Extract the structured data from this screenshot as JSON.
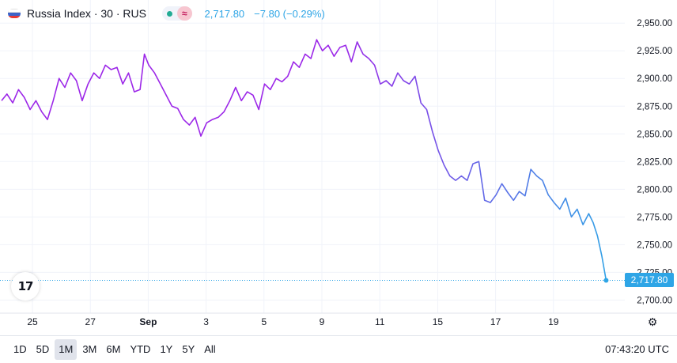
{
  "header": {
    "title": "Russia Index · 30 · RUS",
    "price": "2,717.80",
    "change": "−7.80 (−0.29%)",
    "wave_icon": "≈"
  },
  "colors": {
    "line_start": "#9c27e8",
    "line_end": "#2ea5e6",
    "accent": "#2ea5e6",
    "market_dot": "#22ab94"
  },
  "logo": {
    "text": "17"
  },
  "last_price_label": "2,717.80",
  "footer": {
    "ranges": [
      {
        "label": "1D"
      },
      {
        "label": "5D"
      },
      {
        "label": "1M",
        "active": true
      },
      {
        "label": "3M"
      },
      {
        "label": "6M"
      },
      {
        "label": "YTD"
      },
      {
        "label": "1Y"
      },
      {
        "label": "5Y"
      },
      {
        "label": "All"
      }
    ],
    "clock": "07:43:20 UTC"
  },
  "chart_data": {
    "type": "line",
    "x_ticks": [
      {
        "label": "25",
        "t": 1
      },
      {
        "label": "27",
        "t": 3
      },
      {
        "label": "Sep",
        "t": 5,
        "bold": true
      },
      {
        "label": "3",
        "t": 7
      },
      {
        "label": "5",
        "t": 9
      },
      {
        "label": "9",
        "t": 11
      },
      {
        "label": "11",
        "t": 13
      },
      {
        "label": "15",
        "t": 15
      },
      {
        "label": "17",
        "t": 17
      },
      {
        "label": "19",
        "t": 19
      }
    ],
    "y_ticks": [
      2700,
      2725,
      2750,
      2775,
      2800,
      2825,
      2850,
      2875,
      2900,
      2925,
      2950
    ],
    "y_tick_labels": [
      "2,700.00",
      "2,725.00",
      "2,750.00",
      "2,775.00",
      "2,800.00",
      "2,825.00",
      "2,850.00",
      "2,875.00",
      "2,900.00",
      "2,925.00",
      "2,950.00"
    ],
    "xlim": [
      0.1,
      21.0
    ],
    "ylim": [
      2696,
      2958
    ],
    "grid": true,
    "last_value": 2717.8,
    "series": [
      {
        "points": [
          [
            0.1,
            2880
          ],
          [
            0.3,
            2886
          ],
          [
            0.5,
            2878
          ],
          [
            0.7,
            2890
          ],
          [
            0.9,
            2883
          ],
          [
            1.1,
            2872
          ],
          [
            1.3,
            2880
          ],
          [
            1.5,
            2870
          ],
          [
            1.7,
            2863
          ],
          [
            1.9,
            2880
          ],
          [
            2.1,
            2900
          ],
          [
            2.3,
            2892
          ],
          [
            2.5,
            2905
          ],
          [
            2.7,
            2898
          ],
          [
            2.9,
            2880
          ],
          [
            3.1,
            2895
          ],
          [
            3.3,
            2905
          ],
          [
            3.5,
            2900
          ],
          [
            3.7,
            2912
          ],
          [
            3.9,
            2908
          ],
          [
            4.1,
            2910
          ],
          [
            4.3,
            2895
          ],
          [
            4.5,
            2905
          ],
          [
            4.7,
            2888
          ],
          [
            4.9,
            2890
          ],
          [
            5.05,
            2922
          ],
          [
            5.2,
            2912
          ],
          [
            5.4,
            2905
          ],
          [
            5.6,
            2895
          ],
          [
            5.8,
            2885
          ],
          [
            6.0,
            2875
          ],
          [
            6.2,
            2873
          ],
          [
            6.4,
            2863
          ],
          [
            6.6,
            2858
          ],
          [
            6.8,
            2865
          ],
          [
            7.0,
            2848
          ],
          [
            7.2,
            2860
          ],
          [
            7.4,
            2863
          ],
          [
            7.6,
            2865
          ],
          [
            7.8,
            2870
          ],
          [
            8.0,
            2880
          ],
          [
            8.2,
            2892
          ],
          [
            8.4,
            2880
          ],
          [
            8.6,
            2888
          ],
          [
            8.8,
            2885
          ],
          [
            9.0,
            2872
          ],
          [
            9.2,
            2895
          ],
          [
            9.4,
            2890
          ],
          [
            9.6,
            2900
          ],
          [
            9.8,
            2897
          ],
          [
            10.0,
            2902
          ],
          [
            10.2,
            2915
          ],
          [
            10.4,
            2910
          ],
          [
            10.6,
            2922
          ],
          [
            10.8,
            2918
          ],
          [
            11.0,
            2935
          ],
          [
            11.2,
            2925
          ],
          [
            11.4,
            2930
          ],
          [
            11.6,
            2920
          ],
          [
            11.8,
            2928
          ],
          [
            12.0,
            2930
          ],
          [
            12.2,
            2915
          ],
          [
            12.4,
            2933
          ],
          [
            12.6,
            2922
          ],
          [
            12.8,
            2918
          ],
          [
            13.0,
            2912
          ],
          [
            13.2,
            2895
          ],
          [
            13.4,
            2898
          ],
          [
            13.6,
            2893
          ],
          [
            13.8,
            2905
          ],
          [
            14.0,
            2898
          ],
          [
            14.2,
            2895
          ],
          [
            14.4,
            2902
          ],
          [
            14.6,
            2878
          ],
          [
            14.8,
            2872
          ],
          [
            15.0,
            2852
          ],
          [
            15.2,
            2835
          ],
          [
            15.4,
            2822
          ],
          [
            15.6,
            2812
          ],
          [
            15.8,
            2808
          ],
          [
            16.0,
            2812
          ],
          [
            16.2,
            2808
          ],
          [
            16.4,
            2823
          ],
          [
            16.6,
            2825
          ],
          [
            16.8,
            2790
          ],
          [
            17.0,
            2788
          ],
          [
            17.2,
            2795
          ],
          [
            17.4,
            2805
          ],
          [
            17.6,
            2797
          ],
          [
            17.8,
            2790
          ],
          [
            18.0,
            2798
          ],
          [
            18.2,
            2794
          ],
          [
            18.4,
            2818
          ],
          [
            18.6,
            2812
          ],
          [
            18.8,
            2808
          ],
          [
            19.0,
            2795
          ],
          [
            19.2,
            2788
          ],
          [
            19.4,
            2782
          ],
          [
            19.6,
            2792
          ],
          [
            19.8,
            2775
          ],
          [
            20.0,
            2782
          ],
          [
            20.2,
            2768
          ],
          [
            20.4,
            2778
          ],
          [
            20.55,
            2770
          ],
          [
            20.7,
            2758
          ],
          [
            20.85,
            2740
          ],
          [
            20.95,
            2725
          ],
          [
            21.0,
            2717.8
          ]
        ]
      }
    ]
  }
}
